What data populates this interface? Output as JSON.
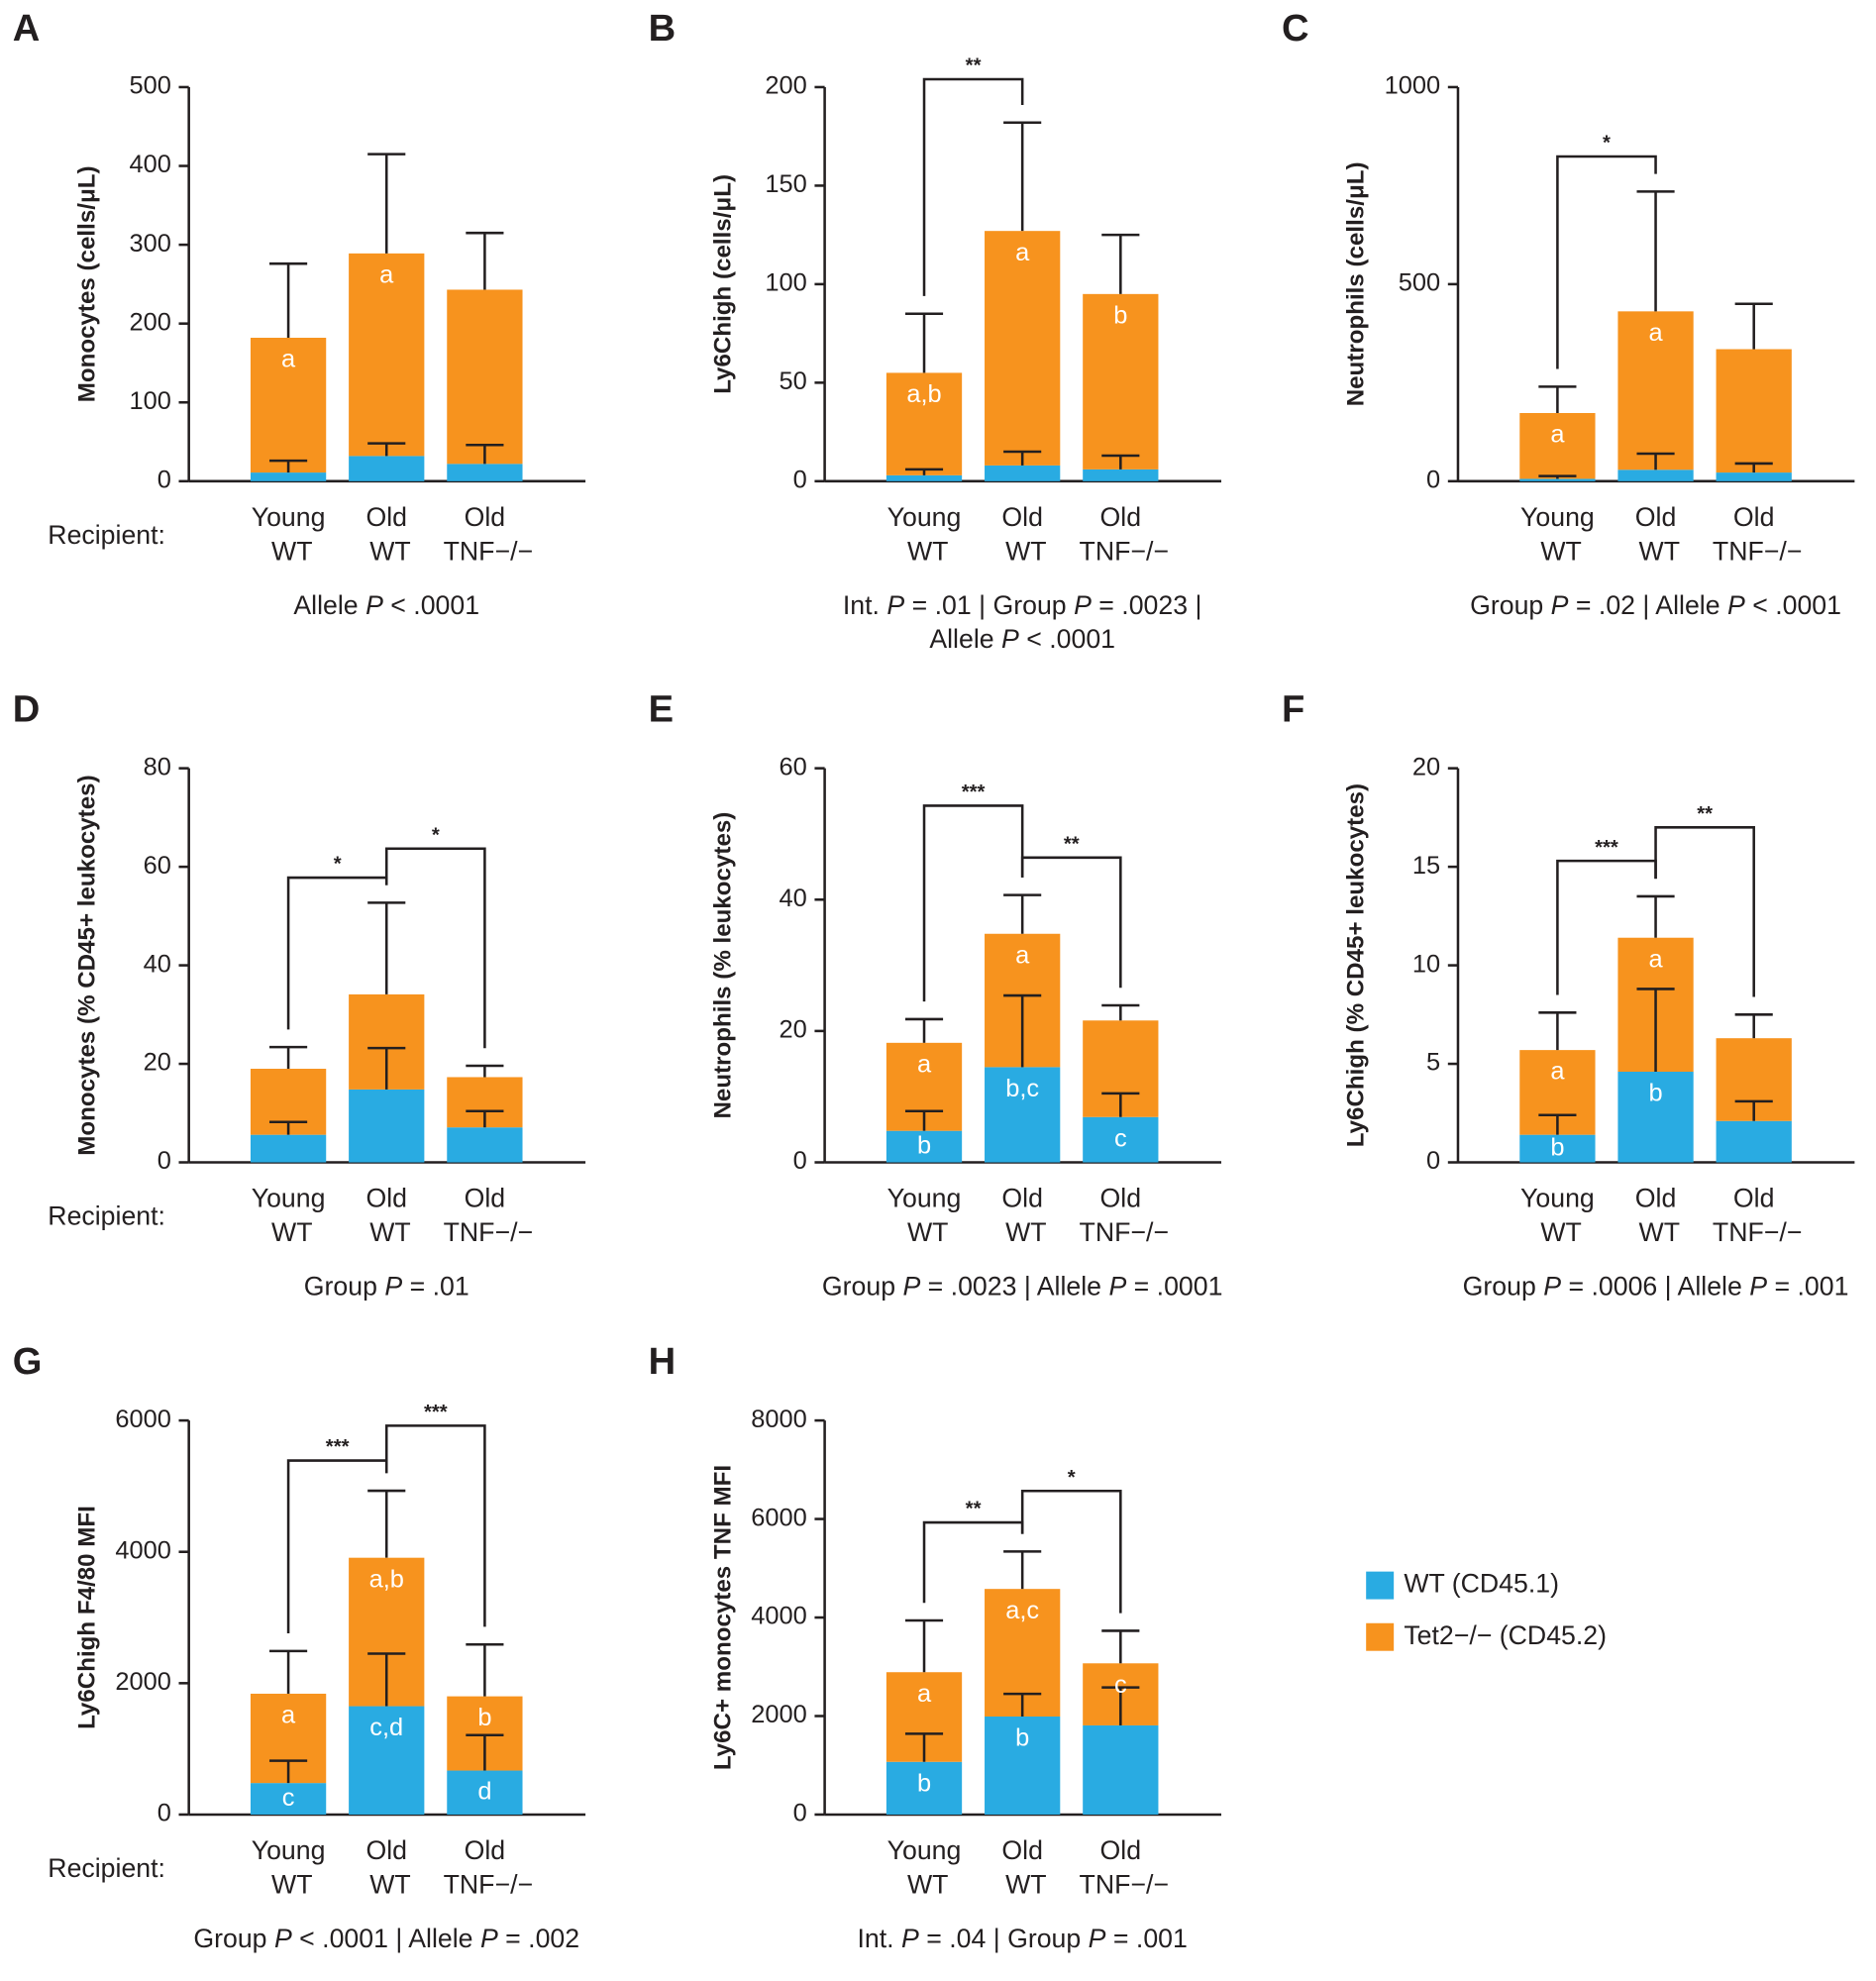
{
  "chart_data": [
    {
      "type": "bar",
      "stacked": true,
      "label": "A",
      "title": "Monocytes (cells/μL)",
      "row_label": "Recipient:",
      "categories": [
        "Young WT",
        "Old WT",
        "Old TNF−/−"
      ],
      "series": [
        {
          "color": "#29abe2",
          "values": [
            11,
            32,
            22
          ],
          "errors": [
            15,
            16,
            24
          ]
        },
        {
          "color": "#f7931e",
          "values": [
            171,
            257,
            221
          ],
          "errors": [
            94,
            126,
            72
          ],
          "labels": [
            "a",
            "a",
            null
          ]
        }
      ],
      "ylim": [
        0,
        500
      ],
      "yticks": [
        0,
        100,
        200,
        300,
        400,
        500
      ],
      "brackets": [],
      "stats": [
        "Allele P < .0001"
      ]
    },
    {
      "type": "bar",
      "stacked": true,
      "label": "B",
      "title": "Ly6Chigh (cells/μL)",
      "categories": [
        "Young WT",
        "Old WT",
        "Old TNF−/−"
      ],
      "series": [
        {
          "color": "#29abe2",
          "values": [
            3,
            8,
            6
          ],
          "errors": [
            3,
            7,
            7
          ]
        },
        {
          "color": "#f7931e",
          "values": [
            52,
            119,
            89
          ],
          "errors": [
            30,
            55,
            30
          ],
          "labels": [
            "a,b",
            "a",
            "b"
          ]
        }
      ],
      "ylim": [
        0,
        200
      ],
      "yticks": [
        0,
        50,
        100,
        150,
        200
      ],
      "brackets": [
        {
          "from": 0,
          "to": 1,
          "label": "**",
          "y": 204
        }
      ],
      "stats": [
        "Int. P = .01 | Group P = .0023 |",
        "Allele P < .0001"
      ]
    },
    {
      "type": "bar",
      "stacked": true,
      "label": "C",
      "title": "Neutrophils (cells/μL)",
      "categories": [
        "Young WT",
        "Old WT",
        "Old TNF−/−"
      ],
      "series": [
        {
          "color": "#29abe2",
          "values": [
            6,
            29,
            22
          ],
          "errors": [
            7,
            41,
            23
          ]
        },
        {
          "color": "#f7931e",
          "values": [
            167,
            402,
            313
          ],
          "errors": [
            67,
            304,
            115
          ],
          "labels": [
            "a",
            "a",
            null
          ]
        }
      ],
      "ylim": [
        0,
        1000
      ],
      "yticks": [
        0,
        500,
        1000
      ],
      "brackets": [
        {
          "from": 0,
          "to": 1,
          "label": "*",
          "y": 824
        }
      ],
      "stats": [
        "Group P = .02 | Allele P < .0001"
      ]
    },
    {
      "type": "bar",
      "stacked": true,
      "label": "D",
      "title": "Monocytes (% CD45+ leukocytes)",
      "row_label": "Recipient:",
      "categories": [
        "Young WT",
        "Old WT",
        "Old TNF−/−"
      ],
      "series": [
        {
          "color": "#29abe2",
          "values": [
            5.6,
            14.8,
            7.1
          ],
          "errors": [
            2.6,
            8.4,
            3.3
          ]
        },
        {
          "color": "#f7931e",
          "values": [
            13.4,
            19.3,
            10.2
          ],
          "errors": [
            4.4,
            18.6,
            2.3
          ]
        }
      ],
      "ylim": [
        0,
        80
      ],
      "yticks": [
        0,
        20,
        40,
        60,
        80
      ],
      "brackets": [
        {
          "from": 0,
          "to": 1,
          "label": "*",
          "y": 57.8
        },
        {
          "from": 1,
          "to": 2,
          "label": "*",
          "y": 63.7
        }
      ],
      "stats": [
        "Group P = .01"
      ]
    },
    {
      "type": "bar",
      "stacked": true,
      "label": "E",
      "title": "Neutrophils (% leukocytes)",
      "categories": [
        "Young WT",
        "Old WT",
        "Old TNF−/−"
      ],
      "series": [
        {
          "color": "#29abe2",
          "values": [
            4.8,
            14.5,
            6.9
          ],
          "errors": [
            3.0,
            10.9,
            3.6
          ],
          "labels": [
            "b",
            "b,c",
            "c"
          ]
        },
        {
          "color": "#f7931e",
          "values": [
            13.4,
            20.3,
            14.7
          ],
          "errors": [
            3.6,
            5.9,
            2.3
          ],
          "labels": [
            "a",
            "a",
            null
          ]
        }
      ],
      "ylim": [
        0,
        60
      ],
      "yticks": [
        0,
        20,
        40,
        60
      ],
      "brackets": [
        {
          "from": 0,
          "to": 1,
          "label": "***",
          "y": 54.3
        },
        {
          "from": 1,
          "to": 2,
          "label": "**",
          "y": 46.4
        }
      ],
      "stats": [
        "Group P = .0023 | Allele P = .0001"
      ]
    },
    {
      "type": "bar",
      "stacked": true,
      "label": "F",
      "title": "Ly6Chigh (% CD45+ leukocytes)",
      "categories": [
        "Young WT",
        "Old WT",
        "Old TNF−/−"
      ],
      "series": [
        {
          "color": "#29abe2",
          "values": [
            1.4,
            4.6,
            2.1
          ],
          "errors": [
            1.0,
            4.2,
            1.0
          ],
          "labels": [
            "b",
            "b",
            null
          ]
        },
        {
          "color": "#f7931e",
          "values": [
            4.3,
            6.8,
            4.2
          ],
          "errors": [
            1.9,
            2.1,
            1.2
          ],
          "labels": [
            "a",
            "a",
            null
          ]
        }
      ],
      "ylim": [
        0,
        20
      ],
      "yticks": [
        0,
        5,
        10,
        15,
        20
      ],
      "brackets": [
        {
          "from": 0,
          "to": 1,
          "label": "***",
          "y": 15.3
        },
        {
          "from": 1,
          "to": 2,
          "label": "**",
          "y": 17.0
        }
      ],
      "stats": [
        "Group P = .0006 | Allele P = .001"
      ]
    },
    {
      "type": "bar",
      "stacked": true,
      "label": "G",
      "title": "Ly6Chigh F4/80 MFI",
      "row_label": "Recipient:",
      "categories": [
        "Young WT",
        "Old WT",
        "Old TNF−/−"
      ],
      "series": [
        {
          "color": "#29abe2",
          "values": [
            480,
            1650,
            670
          ],
          "errors": [
            340,
            800,
            540
          ],
          "labels": [
            "c",
            "c,d",
            "d"
          ]
        },
        {
          "color": "#f7931e",
          "values": [
            1360,
            2260,
            1130
          ],
          "errors": [
            650,
            1020,
            790
          ],
          "labels": [
            "a",
            "a,b",
            "b"
          ]
        }
      ],
      "ylim": [
        0,
        6000
      ],
      "yticks": [
        0,
        2000,
        4000,
        6000
      ],
      "brackets": [
        {
          "from": 0,
          "to": 1,
          "label": "***",
          "y": 5390
        },
        {
          "from": 1,
          "to": 2,
          "label": "***",
          "y": 5920
        }
      ],
      "stats": [
        "Group P < .0001 | Allele P = .002"
      ]
    },
    {
      "type": "bar",
      "stacked": true,
      "label": "H",
      "title": "Ly6C+ monocytes TNF MFI",
      "legend": "right",
      "categories": [
        "Young WT",
        "Old WT",
        "Old TNF−/−"
      ],
      "series": [
        {
          "name": "WT (CD45.1)",
          "color": "#29abe2",
          "values": [
            1070,
            1990,
            1810
          ],
          "errors": [
            570,
            460,
            770
          ],
          "labels": [
            "b",
            "b",
            null
          ]
        },
        {
          "name": "Tet2−/− (CD45.2)",
          "color": "#f7931e",
          "values": [
            1820,
            2590,
            1260
          ],
          "errors": [
            1050,
            760,
            660
          ],
          "labels": [
            "a",
            "a,c",
            "c"
          ]
        }
      ],
      "ylim": [
        0,
        8000
      ],
      "yticks": [
        0,
        2000,
        4000,
        6000,
        8000
      ],
      "brackets": [
        {
          "from": 0,
          "to": 1,
          "label": "**",
          "y": 5930
        },
        {
          "from": 1,
          "to": 2,
          "label": "*",
          "y": 6570
        }
      ],
      "stats": [
        "Int. P = .04 | Group P = .001"
      ]
    }
  ]
}
